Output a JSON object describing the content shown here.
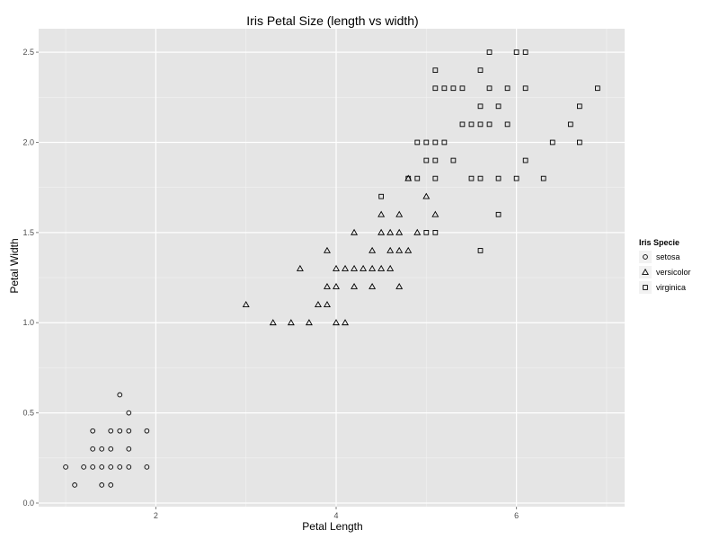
{
  "chart_data": {
    "type": "scatter",
    "title": "Iris Petal Size (length vs width)",
    "xlabel": "Petal Length",
    "ylabel": "Petal Width",
    "xlim": [
      0.7,
      7.2
    ],
    "ylim": [
      -0.02,
      2.63
    ],
    "x_ticks": [
      2,
      4,
      6
    ],
    "y_ticks": [
      0.0,
      0.5,
      1.0,
      1.5,
      2.0,
      2.5
    ],
    "x_tick_labels": [
      "2",
      "4",
      "6"
    ],
    "y_tick_labels": [
      "0.0",
      "0.5",
      "1.0",
      "1.5",
      "2.0",
      "2.5"
    ],
    "grid": true,
    "background": "#e5e5e5",
    "grid_color": "#ffffff",
    "legend": {
      "title": "Iris Specie",
      "position": "right",
      "entries": [
        "setosa",
        "versicolor",
        "virginica"
      ]
    },
    "series": [
      {
        "name": "setosa",
        "shape": "circle",
        "points": [
          [
            1.0,
            0.2
          ],
          [
            1.1,
            0.1
          ],
          [
            1.2,
            0.2
          ],
          [
            1.3,
            0.2
          ],
          [
            1.3,
            0.3
          ],
          [
            1.3,
            0.4
          ],
          [
            1.4,
            0.1
          ],
          [
            1.4,
            0.2
          ],
          [
            1.4,
            0.3
          ],
          [
            1.5,
            0.1
          ],
          [
            1.5,
            0.2
          ],
          [
            1.5,
            0.3
          ],
          [
            1.5,
            0.4
          ],
          [
            1.6,
            0.2
          ],
          [
            1.6,
            0.4
          ],
          [
            1.6,
            0.6
          ],
          [
            1.7,
            0.2
          ],
          [
            1.7,
            0.3
          ],
          [
            1.7,
            0.4
          ],
          [
            1.7,
            0.5
          ],
          [
            1.9,
            0.2
          ],
          [
            1.9,
            0.4
          ]
        ]
      },
      {
        "name": "versicolor",
        "shape": "triangle",
        "points": [
          [
            3.0,
            1.1
          ],
          [
            3.3,
            1.0
          ],
          [
            3.5,
            1.0
          ],
          [
            3.6,
            1.3
          ],
          [
            3.7,
            1.0
          ],
          [
            3.8,
            1.1
          ],
          [
            3.9,
            1.1
          ],
          [
            3.9,
            1.2
          ],
          [
            3.9,
            1.4
          ],
          [
            4.0,
            1.0
          ],
          [
            4.0,
            1.2
          ],
          [
            4.0,
            1.3
          ],
          [
            4.1,
            1.0
          ],
          [
            4.1,
            1.3
          ],
          [
            4.2,
            1.2
          ],
          [
            4.2,
            1.3
          ],
          [
            4.2,
            1.5
          ],
          [
            4.3,
            1.3
          ],
          [
            4.4,
            1.2
          ],
          [
            4.4,
            1.3
          ],
          [
            4.4,
            1.4
          ],
          [
            4.5,
            1.3
          ],
          [
            4.5,
            1.5
          ],
          [
            4.5,
            1.6
          ],
          [
            4.6,
            1.3
          ],
          [
            4.6,
            1.4
          ],
          [
            4.6,
            1.5
          ],
          [
            4.7,
            1.2
          ],
          [
            4.7,
            1.4
          ],
          [
            4.7,
            1.5
          ],
          [
            4.7,
            1.6
          ],
          [
            4.8,
            1.4
          ],
          [
            4.8,
            1.8
          ],
          [
            4.9,
            1.5
          ],
          [
            5.0,
            1.7
          ],
          [
            5.1,
            1.6
          ]
        ]
      },
      {
        "name": "virginica",
        "shape": "square",
        "points": [
          [
            4.5,
            1.7
          ],
          [
            4.8,
            1.8
          ],
          [
            4.9,
            1.8
          ],
          [
            4.9,
            2.0
          ],
          [
            5.0,
            1.5
          ],
          [
            5.0,
            1.9
          ],
          [
            5.0,
            2.0
          ],
          [
            5.1,
            1.5
          ],
          [
            5.1,
            1.8
          ],
          [
            5.1,
            1.9
          ],
          [
            5.1,
            2.0
          ],
          [
            5.1,
            2.3
          ],
          [
            5.1,
            2.4
          ],
          [
            5.2,
            2.0
          ],
          [
            5.2,
            2.3
          ],
          [
            5.3,
            1.9
          ],
          [
            5.3,
            2.3
          ],
          [
            5.4,
            2.1
          ],
          [
            5.4,
            2.3
          ],
          [
            5.5,
            1.8
          ],
          [
            5.5,
            2.1
          ],
          [
            5.6,
            1.4
          ],
          [
            5.6,
            1.8
          ],
          [
            5.6,
            2.1
          ],
          [
            5.6,
            2.2
          ],
          [
            5.6,
            2.4
          ],
          [
            5.7,
            2.1
          ],
          [
            5.7,
            2.3
          ],
          [
            5.7,
            2.5
          ],
          [
            5.8,
            1.6
          ],
          [
            5.8,
            1.8
          ],
          [
            5.8,
            2.2
          ],
          [
            5.9,
            2.1
          ],
          [
            5.9,
            2.3
          ],
          [
            6.0,
            1.8
          ],
          [
            6.0,
            2.5
          ],
          [
            6.1,
            1.9
          ],
          [
            6.1,
            2.3
          ],
          [
            6.1,
            2.5
          ],
          [
            6.3,
            1.8
          ],
          [
            6.4,
            2.0
          ],
          [
            6.6,
            2.1
          ],
          [
            6.7,
            2.0
          ],
          [
            6.7,
            2.2
          ],
          [
            6.9,
            2.3
          ]
        ]
      }
    ]
  }
}
